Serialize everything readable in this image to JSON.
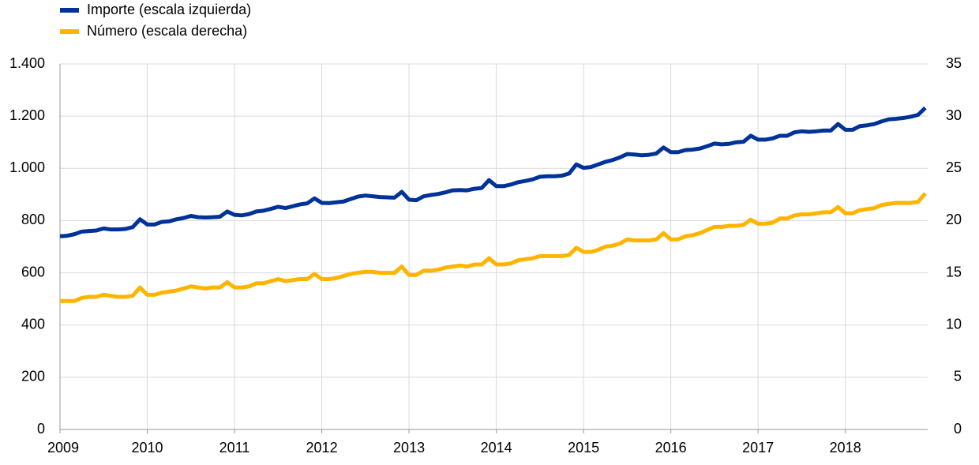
{
  "chart_data": {
    "type": "line",
    "categories": [
      "2009",
      null,
      null,
      null,
      null,
      null,
      null,
      null,
      null,
      null,
      null,
      null,
      "2010",
      null,
      null,
      null,
      null,
      null,
      null,
      null,
      null,
      null,
      null,
      null,
      "2011",
      null,
      null,
      null,
      null,
      null,
      null,
      null,
      null,
      null,
      null,
      null,
      "2012",
      null,
      null,
      null,
      null,
      null,
      null,
      null,
      null,
      null,
      null,
      null,
      "2013",
      null,
      null,
      null,
      null,
      null,
      null,
      null,
      null,
      null,
      null,
      null,
      "2014",
      null,
      null,
      null,
      null,
      null,
      null,
      null,
      null,
      null,
      null,
      null,
      "2015",
      null,
      null,
      null,
      null,
      null,
      null,
      null,
      null,
      null,
      null,
      null,
      "2016",
      null,
      null,
      null,
      null,
      null,
      null,
      null,
      null,
      null,
      null,
      null,
      "2017",
      null,
      null,
      null,
      null,
      null,
      null,
      null,
      null,
      null,
      null,
      null,
      "2018",
      null,
      null,
      null,
      null,
      null,
      null,
      null,
      null,
      null,
      null,
      null
    ],
    "series": [
      {
        "name": "Importe (escala izquierda)",
        "color": "#003299",
        "axis": "y",
        "values": [
          740,
          742,
          748,
          758,
          760,
          762,
          770,
          766,
          766,
          768,
          775,
          805,
          785,
          785,
          795,
          797,
          805,
          810,
          818,
          813,
          812,
          813,
          815,
          835,
          822,
          820,
          825,
          835,
          838,
          845,
          853,
          848,
          855,
          862,
          866,
          885,
          868,
          867,
          870,
          873,
          883,
          892,
          896,
          893,
          890,
          889,
          888,
          910,
          880,
          878,
          893,
          898,
          902,
          908,
          916,
          917,
          916,
          922,
          925,
          955,
          932,
          932,
          938,
          947,
          952,
          958,
          968,
          970,
          970,
          972,
          980,
          1015,
          1002,
          1005,
          1015,
          1025,
          1032,
          1042,
          1055,
          1053,
          1050,
          1052,
          1057,
          1080,
          1062,
          1062,
          1070,
          1072,
          1076,
          1085,
          1095,
          1092,
          1094,
          1100,
          1102,
          1125,
          1110,
          1110,
          1115,
          1125,
          1125,
          1138,
          1142,
          1140,
          1142,
          1145,
          1145,
          1170,
          1148,
          1148,
          1162,
          1165,
          1170,
          1180,
          1188,
          1190,
          1193,
          1198,
          1205,
          1232
        ]
      },
      {
        "name": "Número (escala derecha)",
        "color": "#ffb400",
        "axis": "y2",
        "values": [
          12.3,
          12.3,
          12.3,
          12.6,
          12.7,
          12.7,
          12.9,
          12.8,
          12.7,
          12.7,
          12.8,
          13.6,
          12.9,
          12.9,
          13.1,
          13.2,
          13.3,
          13.5,
          13.7,
          13.6,
          13.5,
          13.6,
          13.6,
          14.1,
          13.6,
          13.6,
          13.7,
          14.0,
          14.0,
          14.2,
          14.4,
          14.2,
          14.3,
          14.4,
          14.4,
          14.9,
          14.4,
          14.4,
          14.5,
          14.7,
          14.9,
          15.0,
          15.1,
          15.1,
          15.0,
          15.0,
          15.0,
          15.6,
          14.8,
          14.8,
          15.2,
          15.2,
          15.3,
          15.5,
          15.6,
          15.7,
          15.6,
          15.8,
          15.8,
          16.4,
          15.8,
          15.8,
          15.9,
          16.2,
          16.3,
          16.4,
          16.6,
          16.6,
          16.6,
          16.6,
          16.7,
          17.4,
          17.0,
          17.0,
          17.2,
          17.5,
          17.6,
          17.8,
          18.2,
          18.1,
          18.1,
          18.1,
          18.2,
          18.8,
          18.2,
          18.2,
          18.5,
          18.6,
          18.8,
          19.1,
          19.4,
          19.4,
          19.5,
          19.5,
          19.6,
          20.1,
          19.7,
          19.7,
          19.8,
          20.2,
          20.2,
          20.5,
          20.6,
          20.6,
          20.7,
          20.8,
          20.8,
          21.3,
          20.7,
          20.7,
          21.0,
          21.1,
          21.2,
          21.5,
          21.6,
          21.7,
          21.7,
          21.7,
          21.8,
          22.6
        ]
      }
    ],
    "ylim": [
      0,
      1400
    ],
    "yticks": [
      0,
      200,
      400,
      600,
      800,
      {
        "value": 1000,
        "label": "1.000"
      },
      {
        "value": 1200,
        "label": "1.200"
      },
      {
        "value": 1400,
        "label": "1.400"
      }
    ],
    "y2lim": [
      0,
      35
    ],
    "y2ticks": [
      0,
      5,
      10,
      15,
      20,
      25,
      30,
      35
    ],
    "grid": true,
    "legend": "top-left"
  }
}
